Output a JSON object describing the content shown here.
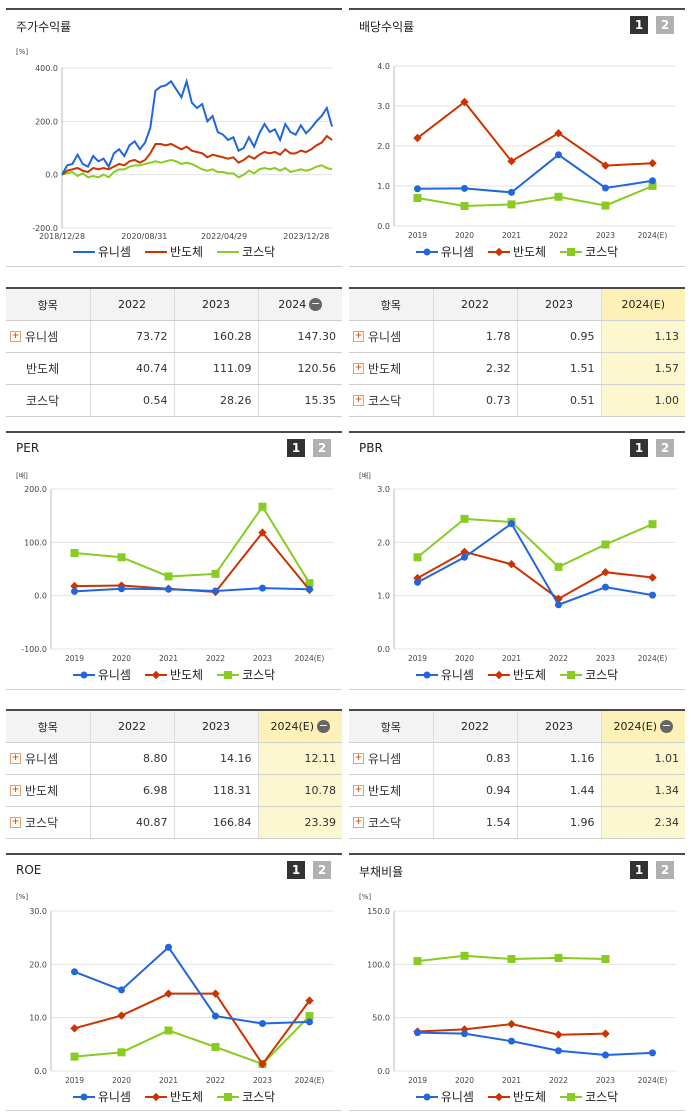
{
  "colors": {
    "unicell": "#2266dd",
    "semis": "#cc3300",
    "kosdaq": "#88cc22"
  },
  "legend": [
    "유니셈",
    "반도체",
    "코스닥"
  ],
  "page_buttons": [
    "1",
    "2"
  ],
  "panels": {
    "price": {
      "title": "주가수익률",
      "unit": "[%]"
    },
    "dividend": {
      "title": "배당수익률",
      "unit": "[%]"
    },
    "per": {
      "title": "PER",
      "unit": "[배]"
    },
    "pbr": {
      "title": "PBR",
      "unit": "[배]"
    },
    "roe": {
      "title": "ROE",
      "unit": "[%]"
    },
    "debt": {
      "title": "부채비율",
      "unit": "[%]"
    }
  },
  "chart_data": [
    {
      "id": "price",
      "type": "line",
      "title": "주가수익률",
      "ylabel": "[%]",
      "ylim": [
        -200,
        400
      ],
      "yticks": [
        "400.0",
        "200.0",
        "0.0",
        "-200.0"
      ],
      "xtick_labels": [
        "2018/12/28",
        "2020/08/31",
        "2022/04/29",
        "2023/12/28"
      ],
      "x_range": [
        "2018-12-28",
        "2024-05-31"
      ],
      "series": [
        {
          "name": "유니셈",
          "color": "#2266dd",
          "values": [
            0,
            35,
            40,
            75,
            40,
            30,
            70,
            50,
            60,
            30,
            80,
            95,
            70,
            110,
            125,
            95,
            120,
            175,
            315,
            330,
            335,
            350,
            320,
            290,
            350,
            270,
            250,
            265,
            200,
            220,
            160,
            150,
            130,
            140,
            90,
            100,
            140,
            105,
            155,
            190,
            160,
            170,
            130,
            190,
            160,
            150,
            185,
            155,
            175,
            200,
            220,
            250,
            180
          ]
        },
        {
          "name": "반도체",
          "color": "#cc3300",
          "values": [
            0,
            15,
            20,
            25,
            15,
            10,
            25,
            20,
            25,
            20,
            30,
            40,
            35,
            50,
            55,
            45,
            55,
            80,
            115,
            115,
            110,
            115,
            105,
            95,
            105,
            90,
            85,
            80,
            65,
            75,
            70,
            65,
            60,
            65,
            45,
            55,
            70,
            60,
            75,
            85,
            80,
            85,
            75,
            95,
            80,
            80,
            90,
            85,
            95,
            110,
            120,
            145,
            130
          ]
        },
        {
          "name": "코스닥",
          "color": "#88cc22",
          "values": [
            0,
            5,
            10,
            -5,
            5,
            -10,
            -5,
            -10,
            0,
            -10,
            10,
            20,
            20,
            30,
            35,
            35,
            40,
            45,
            50,
            45,
            50,
            55,
            50,
            40,
            45,
            40,
            30,
            20,
            15,
            20,
            10,
            10,
            5,
            5,
            -10,
            0,
            15,
            5,
            20,
            25,
            20,
            25,
            15,
            25,
            10,
            15,
            20,
            15,
            20,
            30,
            35,
            25,
            20
          ]
        }
      ]
    },
    {
      "id": "dividend",
      "type": "line",
      "title": "배당수익률",
      "ylabel": "[%]",
      "ylim": [
        0,
        4
      ],
      "yticks": [
        "4.0",
        "3.0",
        "2.0",
        "1.0",
        "0.0"
      ],
      "categories": [
        "2019",
        "2020",
        "2021",
        "2022",
        "2023",
        "2024(E)"
      ],
      "series": [
        {
          "name": "유니셈",
          "color": "#2266dd",
          "values": [
            0.93,
            0.94,
            0.84,
            1.78,
            0.95,
            1.13
          ]
        },
        {
          "name": "반도체",
          "color": "#cc3300",
          "values": [
            2.2,
            3.1,
            1.62,
            2.32,
            1.51,
            1.57
          ]
        },
        {
          "name": "코스닥",
          "color": "#88cc22",
          "values": [
            0.7,
            0.5,
            0.54,
            0.73,
            0.51,
            1.0
          ]
        }
      ]
    },
    {
      "id": "per",
      "type": "line",
      "title": "PER",
      "ylabel": "[배]",
      "ylim": [
        -100,
        200
      ],
      "yticks": [
        "200.0",
        "100.0",
        "0.0",
        "-100.0"
      ],
      "categories": [
        "2019",
        "2020",
        "2021",
        "2022",
        "2023",
        "2024(E)"
      ],
      "series": [
        {
          "name": "유니셈",
          "color": "#2266dd",
          "values": [
            8,
            13,
            12,
            8.8,
            14.16,
            12.11
          ]
        },
        {
          "name": "반도체",
          "color": "#cc3300",
          "values": [
            18,
            19,
            13,
            6.98,
            118.31,
            10.78
          ]
        },
        {
          "name": "코스닥",
          "color": "#88cc22",
          "values": [
            80,
            72,
            36,
            40.87,
            166.84,
            23.39
          ]
        }
      ]
    },
    {
      "id": "pbr",
      "type": "line",
      "title": "PBR",
      "ylabel": "[배]",
      "ylim": [
        0,
        3
      ],
      "yticks": [
        "3.0",
        "2.0",
        "1.0",
        "0.0"
      ],
      "categories": [
        "2019",
        "2020",
        "2021",
        "2022",
        "2023",
        "2024(E)"
      ],
      "series": [
        {
          "name": "유니셈",
          "color": "#2266dd",
          "values": [
            1.25,
            1.72,
            2.35,
            0.83,
            1.16,
            1.01
          ]
        },
        {
          "name": "반도체",
          "color": "#cc3300",
          "values": [
            1.33,
            1.82,
            1.59,
            0.94,
            1.44,
            1.34
          ]
        },
        {
          "name": "코스닥",
          "color": "#88cc22",
          "values": [
            1.72,
            2.44,
            2.38,
            1.54,
            1.96,
            2.34
          ]
        }
      ]
    },
    {
      "id": "roe",
      "type": "line",
      "title": "ROE",
      "ylabel": "[%]",
      "ylim": [
        0,
        30
      ],
      "yticks": [
        "30.0",
        "20.0",
        "10.0",
        "0.0"
      ],
      "categories": [
        "2019",
        "2020",
        "2021",
        "2022",
        "2023",
        "2024(E)"
      ],
      "series": [
        {
          "name": "유니셈",
          "color": "#2266dd",
          "values": [
            18.6,
            15.2,
            23.2,
            10.3,
            8.9,
            9.2
          ]
        },
        {
          "name": "반도체",
          "color": "#cc3300",
          "values": [
            8.0,
            10.4,
            14.5,
            14.5,
            1.3,
            13.2
          ]
        },
        {
          "name": "코스닥",
          "color": "#88cc22",
          "values": [
            2.7,
            3.5,
            7.6,
            4.5,
            1.3,
            10.3
          ]
        }
      ]
    },
    {
      "id": "debt",
      "type": "line",
      "title": "부채비율",
      "ylabel": "[%]",
      "ylim": [
        0,
        150
      ],
      "yticks": [
        "150.0",
        "100.0",
        "50.0",
        "0.0"
      ],
      "categories": [
        "2019",
        "2020",
        "2021",
        "2022",
        "2023",
        "2024(E)"
      ],
      "series": [
        {
          "name": "유니셈",
          "color": "#2266dd",
          "values": [
            36,
            35,
            28,
            19,
            15,
            17
          ]
        },
        {
          "name": "반도체",
          "color": "#cc3300",
          "values": [
            37,
            39,
            44,
            34,
            35,
            null
          ]
        },
        {
          "name": "코스닥",
          "color": "#88cc22",
          "values": [
            103,
            108,
            105,
            106,
            105,
            null
          ]
        }
      ]
    }
  ],
  "tables": {
    "price": {
      "headers": [
        "항목",
        "2022",
        "2023",
        "2024"
      ],
      "rows": [
        {
          "name": "유니셈",
          "plus": true,
          "values": [
            "73.72",
            "160.28",
            "147.30"
          ]
        },
        {
          "name": "반도체",
          "plus": false,
          "values": [
            "40.74",
            "111.09",
            "120.56"
          ]
        },
        {
          "name": "코스닥",
          "plus": false,
          "values": [
            "0.54",
            "28.26",
            "15.35"
          ]
        }
      ]
    },
    "dividend": {
      "headers": [
        "항목",
        "2022",
        "2023",
        "2024(E)"
      ],
      "rows": [
        {
          "name": "유니셈",
          "plus": true,
          "values": [
            "1.78",
            "0.95",
            "1.13"
          ]
        },
        {
          "name": "반도체",
          "plus": true,
          "values": [
            "2.32",
            "1.51",
            "1.57"
          ]
        },
        {
          "name": "코스닥",
          "plus": true,
          "values": [
            "0.73",
            "0.51",
            "1.00"
          ]
        }
      ]
    },
    "per": {
      "headers": [
        "항목",
        "2022",
        "2023",
        "2024(E)"
      ],
      "rows": [
        {
          "name": "유니셈",
          "plus": true,
          "values": [
            "8.80",
            "14.16",
            "12.11"
          ]
        },
        {
          "name": "반도체",
          "plus": true,
          "values": [
            "6.98",
            "118.31",
            "10.78"
          ]
        },
        {
          "name": "코스닥",
          "plus": true,
          "values": [
            "40.87",
            "166.84",
            "23.39"
          ]
        }
      ]
    },
    "pbr": {
      "headers": [
        "항목",
        "2022",
        "2023",
        "2024(E)"
      ],
      "rows": [
        {
          "name": "유니셈",
          "plus": true,
          "values": [
            "0.83",
            "1.16",
            "1.01"
          ]
        },
        {
          "name": "반도체",
          "plus": true,
          "values": [
            "0.94",
            "1.44",
            "1.34"
          ]
        },
        {
          "name": "코스닥",
          "plus": true,
          "values": [
            "1.54",
            "1.96",
            "2.34"
          ]
        }
      ]
    }
  }
}
